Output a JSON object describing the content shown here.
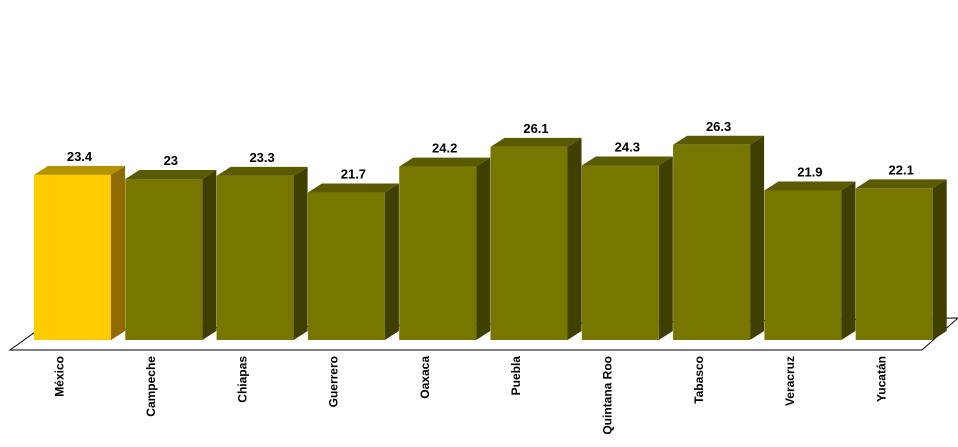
{
  "chart_data": {
    "type": "bar",
    "title": "",
    "xlabel": "",
    "ylabel": "",
    "categories": [
      "México",
      "Campeche",
      "Chiapas",
      "Guerrero",
      "Oaxaca",
      "Puebla",
      "Quintana Roo",
      "Tabasco",
      "Veracruz",
      "Yucatán"
    ],
    "values": [
      23.4,
      23,
      23.3,
      21.7,
      24.2,
      26.1,
      24.3,
      26.3,
      21.9,
      22.1
    ],
    "value_labels": [
      "23.4",
      "23",
      "23.3",
      "21.7",
      "24.2",
      "26.1",
      "24.3",
      "26.3",
      "21.9",
      "22.1"
    ],
    "highlight_index": 0,
    "colors": {
      "highlight_front": "#FFCC00",
      "highlight_side": "#8F6A00",
      "highlight_top": "#B39400",
      "bar_front": "#777700",
      "bar_side": "#3F3F00",
      "bar_top": "#5A5A00"
    },
    "grid": false,
    "legend": "none"
  }
}
